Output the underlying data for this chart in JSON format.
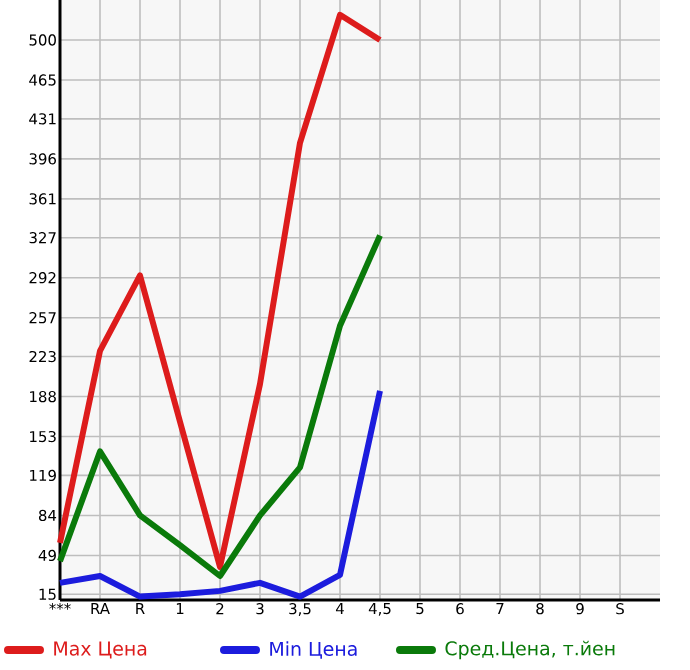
{
  "chart_data": {
    "type": "line",
    "categories": [
      "***",
      "RA",
      "R",
      "1",
      "2",
      "3",
      "3,5",
      "4",
      "4,5",
      "5",
      "6",
      "7",
      "8",
      "9",
      "S"
    ],
    "series": [
      {
        "name": "Max Цена",
        "color": "#dd1c1c",
        "values": [
          60,
          228,
          294,
          166,
          39,
          199,
          410,
          522,
          500,
          null,
          null,
          null,
          null,
          null,
          null
        ]
      },
      {
        "name": "Min Цена",
        "color": "#1c1cdd",
        "values": [
          25,
          31,
          13,
          15,
          18,
          25,
          13,
          32,
          193,
          null,
          null,
          null,
          null,
          null,
          null
        ]
      },
      {
        "name": "Сред.Цена, т.йен",
        "color": "#0a7a0a",
        "values": [
          44,
          140,
          84,
          58,
          31,
          84,
          126,
          250,
          329,
          null,
          null,
          null,
          null,
          null,
          null
        ]
      }
    ],
    "ylim": [
      10,
      535
    ],
    "yticks": [
      15,
      49,
      84,
      119,
      153,
      188,
      223,
      257,
      292,
      327,
      361,
      396,
      431,
      465,
      500
    ],
    "grid": true,
    "legend": "bottom",
    "marker": "none",
    "line_style": "solid"
  }
}
